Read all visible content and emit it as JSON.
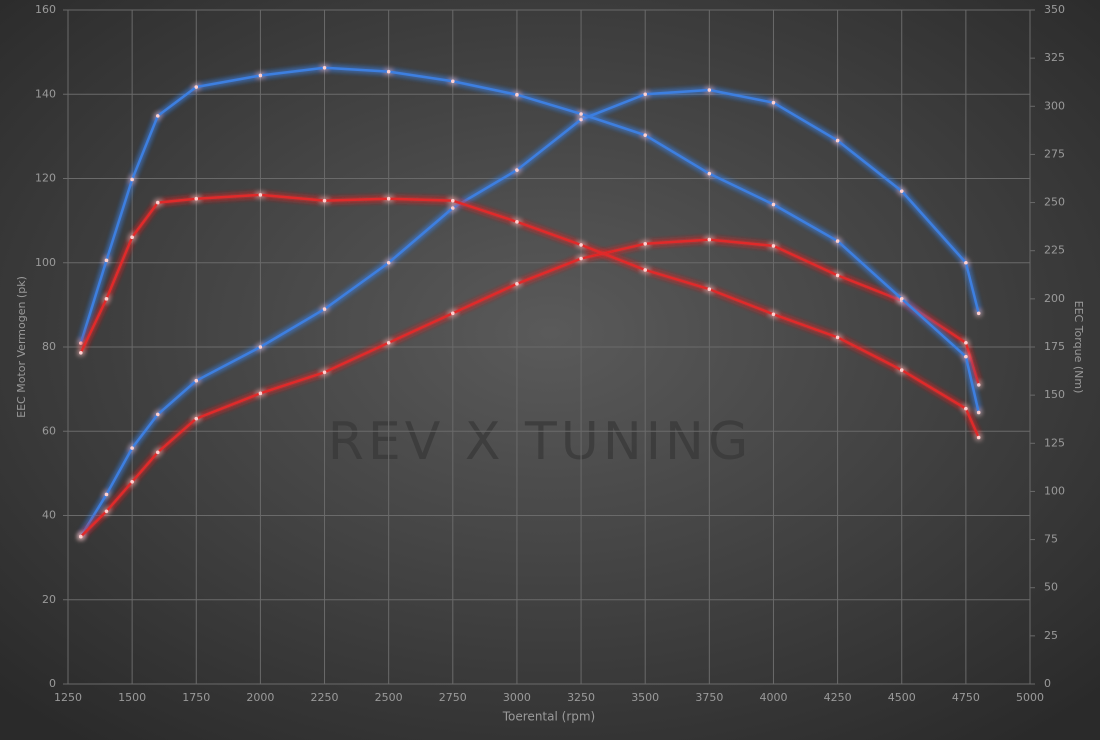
{
  "chart_data": {
    "type": "line",
    "xlabel": "Toerental (rpm)",
    "ylabel": "EEC Motor Vermogen (pk)",
    "y2label": "EEC Torque (Nm)",
    "watermark": "REV X TUNING",
    "x": [
      1300,
      1400,
      1500,
      1600,
      1750,
      2000,
      2250,
      2500,
      2750,
      3000,
      3250,
      3500,
      3750,
      4000,
      4250,
      4500,
      4750,
      4800
    ],
    "series": [
      {
        "color": "#3d7fe0",
        "axis": "y",
        "values": [
          35,
          45,
          56,
          64,
          72,
          80,
          89,
          100,
          113,
          122,
          134,
          140,
          141,
          138,
          129,
          117,
          100,
          88
        ]
      },
      {
        "color": "#e02a2a",
        "axis": "y",
        "values": [
          35,
          41,
          48,
          55,
          63,
          69,
          74,
          81,
          88,
          95,
          101,
          104.5,
          105.5,
          104,
          97,
          91,
          81,
          71
        ]
      },
      {
        "color": "#3d7fe0",
        "axis": "y2",
        "values": [
          177,
          220,
          262,
          295,
          310,
          316,
          320,
          318,
          313,
          306,
          296,
          285,
          265,
          249,
          230,
          200,
          170,
          141
        ]
      },
      {
        "color": "#e02a2a",
        "axis": "y2",
        "values": [
          172,
          200,
          232,
          250,
          252,
          254,
          251,
          252,
          251,
          240,
          228,
          215,
          205,
          192,
          180,
          163,
          143,
          128
        ]
      }
    ],
    "xlim": [
      1250,
      5000
    ],
    "xticks": [
      1250,
      1500,
      1750,
      2000,
      2250,
      2500,
      2750,
      3000,
      3250,
      3500,
      3750,
      4000,
      4250,
      4500,
      4750,
      5000
    ],
    "ylim": [
      0,
      160
    ],
    "yticks": [
      0,
      20,
      40,
      60,
      80,
      100,
      120,
      140,
      160
    ],
    "y2lim": [
      0,
      350
    ],
    "y2ticks": [
      0,
      25,
      50,
      75,
      100,
      125,
      150,
      175,
      200,
      225,
      250,
      275,
      300,
      325,
      350
    ],
    "grid": true
  }
}
